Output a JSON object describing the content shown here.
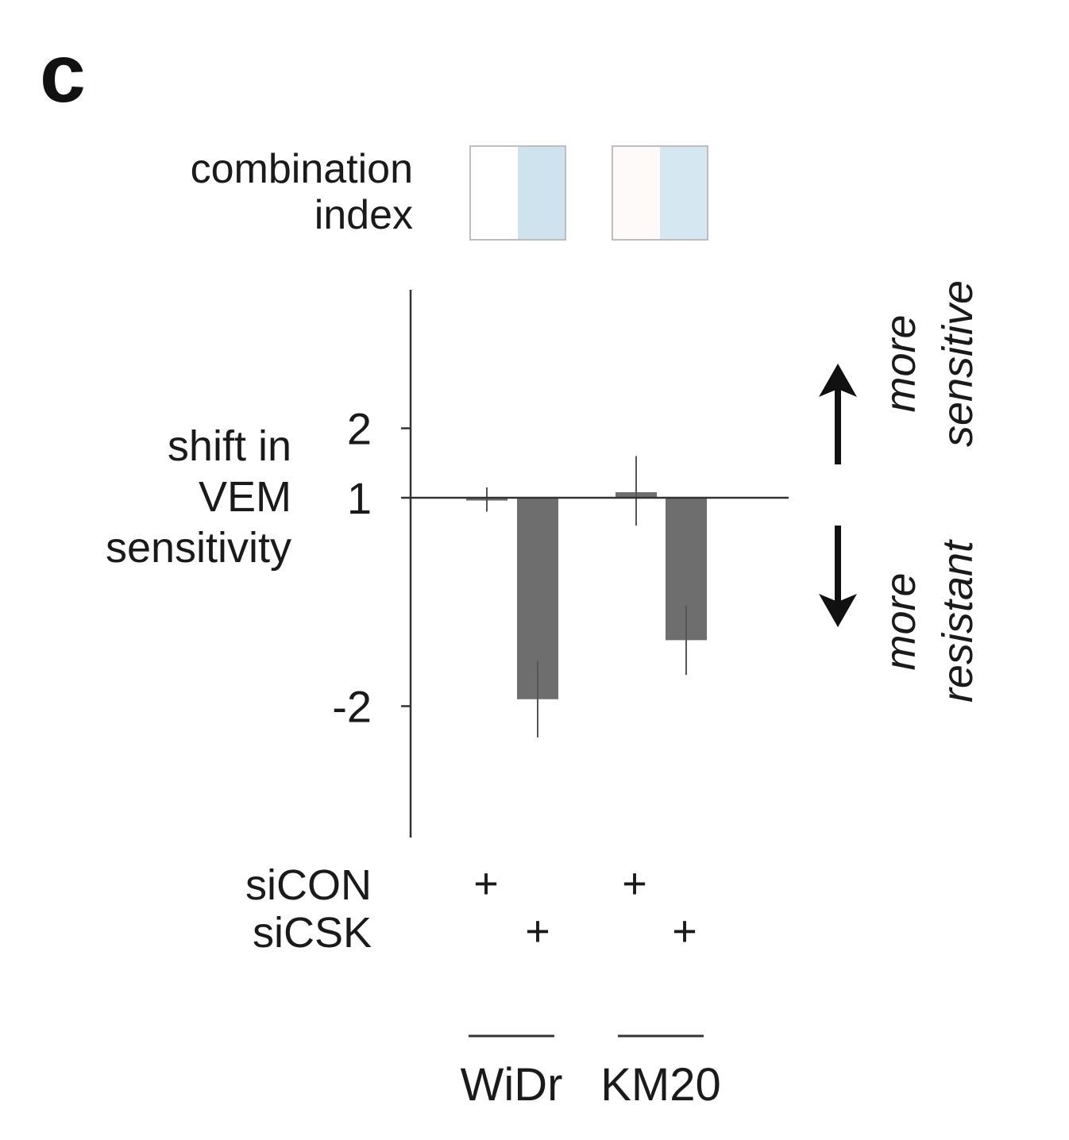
{
  "panel_label": "c",
  "combination_index": {
    "label_lines": [
      "combination",
      "index"
    ],
    "swatches": [
      {
        "group": "WiDr",
        "cells": [
          "#ffffff",
          "#cfe3ee"
        ]
      },
      {
        "group": "KM20",
        "cells": [
          "#fefafa",
          "#d5e7f1"
        ]
      }
    ]
  },
  "direction_labels": {
    "up": [
      "more",
      "sensitive"
    ],
    "down": [
      "more",
      "resistant"
    ]
  },
  "treatment_rows": [
    {
      "label": "siCON",
      "marks": [
        "+",
        "",
        "+",
        ""
      ]
    },
    {
      "label": "siCSK",
      "marks": [
        "",
        "+",
        "",
        "+"
      ]
    }
  ],
  "chart_data": {
    "type": "bar",
    "ylabel_lines": [
      "shift in",
      "VEM",
      "sensitivity"
    ],
    "yticks": [
      2,
      1,
      -2
    ],
    "ytick_labels": [
      "2",
      "1",
      "-2"
    ],
    "y_scale": "symmetric shift scale (ticks at 2, 1, -2; baseline at 1)",
    "baseline": 1,
    "groups": [
      "WiDr",
      "KM20"
    ],
    "bars": [
      {
        "group": "WiDr",
        "treatment": "siCON",
        "value": 0.96,
        "error_low": 0.8,
        "error_high": 1.15,
        "color": "#6e6e6e"
      },
      {
        "group": "WiDr",
        "treatment": "siCSK",
        "value": -1.9,
        "error_low": -2.45,
        "error_high": -1.35,
        "color": "#6e6e6e"
      },
      {
        "group": "KM20",
        "treatment": "siCON",
        "value": 1.08,
        "error_low": 0.6,
        "error_high": 1.6,
        "color": "#6e6e6e"
      },
      {
        "group": "KM20",
        "treatment": "siCSK",
        "value": -1.05,
        "error_low": -1.55,
        "error_high": -0.55,
        "color": "#6e6e6e"
      }
    ],
    "grid": false,
    "legend": "none"
  }
}
